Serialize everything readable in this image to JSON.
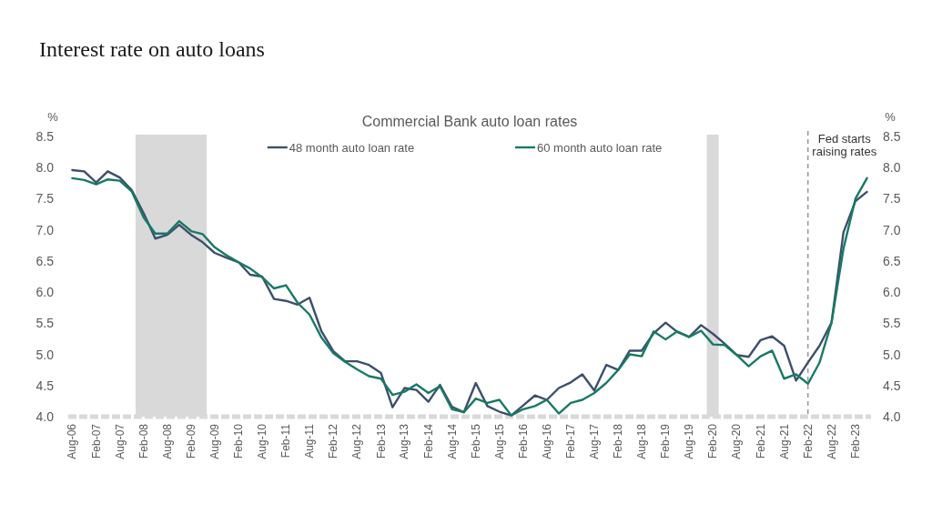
{
  "chart_data": {
    "type": "line",
    "title": "Interest rate on auto loans",
    "subtitle": "Commercial Bank auto loan rates",
    "ylabel": "%",
    "y2label": "%",
    "x": [
      "2006-08",
      "2006-11",
      "2007-02",
      "2007-05",
      "2007-08",
      "2007-11",
      "2008-02",
      "2008-05",
      "2008-08",
      "2008-11",
      "2009-02",
      "2009-05",
      "2009-08",
      "2009-11",
      "2010-02",
      "2010-05",
      "2010-08",
      "2010-11",
      "2011-02",
      "2011-05",
      "2011-08",
      "2011-11",
      "2012-02",
      "2012-05",
      "2012-08",
      "2012-11",
      "2013-02",
      "2013-05",
      "2013-08",
      "2013-11",
      "2014-02",
      "2014-05",
      "2014-08",
      "2014-11",
      "2015-02",
      "2015-05",
      "2015-08",
      "2015-11",
      "2016-02",
      "2016-05",
      "2016-08",
      "2016-11",
      "2017-02",
      "2017-05",
      "2017-08",
      "2017-11",
      "2018-02",
      "2018-05",
      "2018-08",
      "2018-11",
      "2019-02",
      "2019-05",
      "2019-08",
      "2019-11",
      "2020-02",
      "2020-05",
      "2020-08",
      "2020-11",
      "2021-02",
      "2021-05",
      "2021-08",
      "2021-11",
      "2022-02",
      "2022-05",
      "2022-08",
      "2022-11",
      "2023-02",
      "2023-05"
    ],
    "xlim": [
      "2006-07",
      "2023-06"
    ],
    "xticks": [
      {
        "value": "2006-08",
        "label": "Aug-06"
      },
      {
        "value": "2007-02",
        "label": "Feb-07"
      },
      {
        "value": "2007-08",
        "label": "Aug-07"
      },
      {
        "value": "2008-02",
        "label": "Feb-08"
      },
      {
        "value": "2008-08",
        "label": "Aug-08"
      },
      {
        "value": "2009-02",
        "label": "Feb-09"
      },
      {
        "value": "2009-08",
        "label": "Aug-09"
      },
      {
        "value": "2010-02",
        "label": "Feb-10"
      },
      {
        "value": "2010-08",
        "label": "Aug-10"
      },
      {
        "value": "2011-02",
        "label": "Feb-11"
      },
      {
        "value": "2011-08",
        "label": "Aug-11"
      },
      {
        "value": "2012-02",
        "label": "Feb-12"
      },
      {
        "value": "2012-08",
        "label": "Aug-12"
      },
      {
        "value": "2013-02",
        "label": "Feb-13"
      },
      {
        "value": "2013-08",
        "label": "Aug-13"
      },
      {
        "value": "2014-02",
        "label": "Feb-14"
      },
      {
        "value": "2014-08",
        "label": "Aug-14"
      },
      {
        "value": "2015-02",
        "label": "Feb-15"
      },
      {
        "value": "2015-08",
        "label": "Aug-15"
      },
      {
        "value": "2016-02",
        "label": "Feb-16"
      },
      {
        "value": "2016-08",
        "label": "Aug-16"
      },
      {
        "value": "2017-02",
        "label": "Feb-17"
      },
      {
        "value": "2017-08",
        "label": "Aug-17"
      },
      {
        "value": "2018-02",
        "label": "Feb-18"
      },
      {
        "value": "2018-08",
        "label": "Aug-18"
      },
      {
        "value": "2019-02",
        "label": "Feb-19"
      },
      {
        "value": "2019-08",
        "label": "Aug-19"
      },
      {
        "value": "2020-02",
        "label": "Feb-20"
      },
      {
        "value": "2020-08",
        "label": "Aug-20"
      },
      {
        "value": "2021-02",
        "label": "Feb-21"
      },
      {
        "value": "2021-08",
        "label": "Aug-21"
      },
      {
        "value": "2022-02",
        "label": "Feb-22"
      },
      {
        "value": "2022-08",
        "label": "Aug-22"
      },
      {
        "value": "2023-02",
        "label": "Feb-23"
      }
    ],
    "ylim": [
      4,
      8.5
    ],
    "yticks": [
      {
        "value": 4,
        "label": "4.0"
      },
      4.5,
      {
        "value": 5,
        "label": "5.0"
      },
      5.5,
      {
        "value": 6,
        "label": "6.0"
      },
      6.5,
      {
        "value": 7,
        "label": "7.0"
      },
      7.5,
      {
        "value": 8,
        "label": "8.0"
      },
      8.5
    ],
    "y2lim": [
      4,
      8.5
    ],
    "y2ticks": [
      {
        "value": 4,
        "label": "4.0"
      },
      4.5,
      {
        "value": 5,
        "label": "5.0"
      },
      5.5,
      {
        "value": 6,
        "label": "6.0"
      },
      6.5,
      {
        "value": 7,
        "label": "7.0"
      },
      7.5,
      {
        "value": 8,
        "label": "8.0"
      },
      8.5
    ],
    "legend": "top",
    "series": [
      {
        "name": "48 month auto loan rate",
        "color": "#3d4f6c",
        "values": [
          7.96,
          7.94,
          7.76,
          7.94,
          7.84,
          7.64,
          7.27,
          6.86,
          6.92,
          7.08,
          6.92,
          6.8,
          6.63,
          6.55,
          6.48,
          6.28,
          6.25,
          5.89,
          5.86,
          5.8,
          5.91,
          5.37,
          5.05,
          4.89,
          4.89,
          4.83,
          4.7,
          4.15,
          4.46,
          4.43,
          4.24,
          4.51,
          4.16,
          4.07,
          4.54,
          4.17,
          4.08,
          4.02,
          4.18,
          4.34,
          4.27,
          4.46,
          4.55,
          4.68,
          4.42,
          4.83,
          4.75,
          5.06,
          5.06,
          5.34,
          5.51,
          5.36,
          5.28,
          5.47,
          5.33,
          5.17,
          4.99,
          4.96,
          5.23,
          5.29,
          5.14,
          4.58,
          4.87,
          5.14,
          5.51,
          6.96,
          7.46,
          7.61
        ]
      },
      {
        "name": "60 month auto loan rate",
        "color": "#177a65",
        "values": [
          7.83,
          7.8,
          7.73,
          7.81,
          7.79,
          7.62,
          7.2,
          6.94,
          6.94,
          7.14,
          6.98,
          6.93,
          6.72,
          6.59,
          6.48,
          6.38,
          6.24,
          6.06,
          6.11,
          5.83,
          5.64,
          5.27,
          5.02,
          4.88,
          4.76,
          4.65,
          4.61,
          4.35,
          4.4,
          4.52,
          4.38,
          4.49,
          4.12,
          4.07,
          4.29,
          4.22,
          4.27,
          4.02,
          4.12,
          4.17,
          4.27,
          4.05,
          4.22,
          4.27,
          4.38,
          4.54,
          4.75,
          5.0,
          4.97,
          5.37,
          5.24,
          5.37,
          5.28,
          5.38,
          5.16,
          5.15,
          4.99,
          4.81,
          4.97,
          5.06,
          4.61,
          4.68,
          4.53,
          4.87,
          5.51,
          6.7,
          7.5,
          7.83
        ]
      }
    ],
    "bands": [
      {
        "axis": "x",
        "from": "2007-12",
        "to": "2009-06",
        "color": "#d9d9d9"
      },
      {
        "axis": "x",
        "from": "2019-12-15",
        "to": "2020-03-15",
        "color": "#d9d9d9"
      }
    ],
    "ref_lines": [
      {
        "axis": "x",
        "value": "2022-02",
        "label": "Fed starts raising rates",
        "color": "#7f7f7f",
        "line_style": "dashed"
      }
    ]
  }
}
